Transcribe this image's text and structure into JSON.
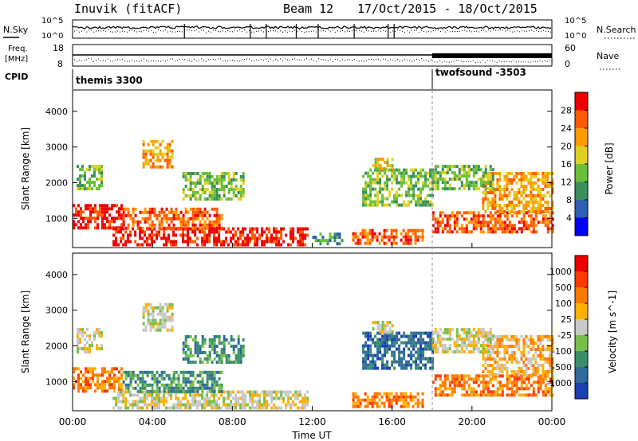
{
  "header": {
    "station": "Inuvik (fitACF)",
    "beam": "Beam 12",
    "date_range": "17/Oct/2015 - 18/Oct/2015"
  },
  "top_panels": {
    "nsky_label": "N.Sky",
    "nsky_ticks": [
      "10^5",
      "10^0"
    ],
    "nsearch_label": "N.Search",
    "nsearch_ticks": [
      "10^5",
      "10^0"
    ],
    "freq_label_line1": "Freq.",
    "freq_label_line2": "[MHz]",
    "freq_ticks": [
      "18",
      "8"
    ],
    "nave_label": "Nave",
    "nave_ticks": [
      "60",
      "0"
    ],
    "cpid_label": "CPID",
    "cpid_segments": [
      {
        "name": "themis 3300",
        "start_hour": 0
      },
      {
        "name": "twofsound -3503",
        "start_hour": 18
      }
    ]
  },
  "chart_data": [
    {
      "type": "heatmap",
      "name": "power",
      "ylabel": "Slant Range [km]",
      "xlabel": "Time UT",
      "x_range_hours": [
        0,
        24
      ],
      "ylim": [
        180,
        4600
      ],
      "yticks": [
        1000,
        2000,
        3000,
        4000
      ],
      "colorbar": {
        "label": "Power [dB]",
        "ticks": [
          4,
          8,
          12,
          16,
          20,
          24,
          28
        ],
        "range": [
          0,
          32
        ],
        "colors": [
          "#0000ff",
          "#2f5fb3",
          "#3a8f5a",
          "#6abf3a",
          "#e0d020",
          "#ff9a00",
          "#ff5a00",
          "#ee0000"
        ]
      },
      "regions": [
        {
          "t0": 0.0,
          "t1": 2.4,
          "r0": 700,
          "r1": 1400,
          "level": 7
        },
        {
          "t0": 2.0,
          "t1": 11.8,
          "r0": 250,
          "r1": 750,
          "level": 7
        },
        {
          "t0": 2.5,
          "t1": 7.5,
          "r0": 750,
          "r1": 1300,
          "level": 6
        },
        {
          "t0": 3.5,
          "t1": 5.0,
          "r0": 2400,
          "r1": 3200,
          "level": 5
        },
        {
          "t0": 0.2,
          "t1": 1.5,
          "r0": 1800,
          "r1": 2500,
          "level": 3
        },
        {
          "t0": 5.5,
          "t1": 8.5,
          "r0": 1500,
          "r1": 2300,
          "level": 3
        },
        {
          "t0": 14.0,
          "t1": 17.5,
          "r0": 300,
          "r1": 700,
          "level": 6
        },
        {
          "t0": 14.5,
          "t1": 18.0,
          "r0": 1400,
          "r1": 2400,
          "level": 3
        },
        {
          "t0": 15.0,
          "t1": 16.0,
          "r0": 2400,
          "r1": 2700,
          "level": 4
        },
        {
          "t0": 18.0,
          "t1": 24.0,
          "r0": 600,
          "r1": 1200,
          "level": 6
        },
        {
          "t0": 20.5,
          "t1": 24.0,
          "r0": 1200,
          "r1": 2300,
          "level": 5
        },
        {
          "t0": 18.0,
          "t1": 21.0,
          "r0": 1800,
          "r1": 2500,
          "level": 3
        },
        {
          "t0": 12.0,
          "t1": 13.5,
          "r0": 250,
          "r1": 600,
          "level": 2
        }
      ]
    },
    {
      "type": "heatmap",
      "name": "velocity",
      "ylabel": "Slant Range [km]",
      "xlabel": "Time UT",
      "x_range_hours": [
        0,
        24
      ],
      "ylim": [
        180,
        4600
      ],
      "yticks": [
        1000,
        2000,
        3000,
        4000
      ],
      "xticks": [
        "00:00",
        "04:00",
        "08:00",
        "12:00",
        "16:00",
        "20:00",
        "00:00"
      ],
      "colorbar": {
        "label": "Velocity [m s^-1]",
        "ticks": [
          "1000",
          "500",
          "100",
          "25",
          "-25",
          "-100",
          "-500",
          "-1000"
        ],
        "colors": [
          "#1a3fb0",
          "#2e6a9c",
          "#3a8f6a",
          "#78bf4a",
          "#c8c8c8",
          "#ffb000",
          "#ff7a00",
          "#ff3a00",
          "#ee0000"
        ]
      },
      "regions": [
        {
          "t0": 0.0,
          "t1": 2.4,
          "r0": 700,
          "r1": 1400,
          "level": 6
        },
        {
          "t0": 2.0,
          "t1": 11.8,
          "r0": 250,
          "r1": 750,
          "level": 4
        },
        {
          "t0": 0.2,
          "t1": 1.5,
          "r0": 1800,
          "r1": 2500,
          "level": 4
        },
        {
          "t0": 2.5,
          "t1": 7.5,
          "r0": 750,
          "r1": 1300,
          "level": 2
        },
        {
          "t0": 3.5,
          "t1": 5.0,
          "r0": 2400,
          "r1": 3200,
          "level": 4
        },
        {
          "t0": 5.5,
          "t1": 8.5,
          "r0": 1500,
          "r1": 2300,
          "level": 2
        },
        {
          "t0": 14.0,
          "t1": 17.5,
          "r0": 300,
          "r1": 700,
          "level": 6
        },
        {
          "t0": 14.5,
          "t1": 18.0,
          "r0": 1400,
          "r1": 2400,
          "level": 1
        },
        {
          "t0": 15.0,
          "t1": 16.0,
          "r0": 2400,
          "r1": 2700,
          "level": 4
        },
        {
          "t0": 18.0,
          "t1": 24.0,
          "r0": 600,
          "r1": 1200,
          "level": 6
        },
        {
          "t0": 20.5,
          "t1": 24.0,
          "r0": 1200,
          "r1": 2300,
          "level": 5
        },
        {
          "t0": 18.0,
          "t1": 21.0,
          "r0": 1800,
          "r1": 2500,
          "level": 4
        }
      ]
    }
  ]
}
